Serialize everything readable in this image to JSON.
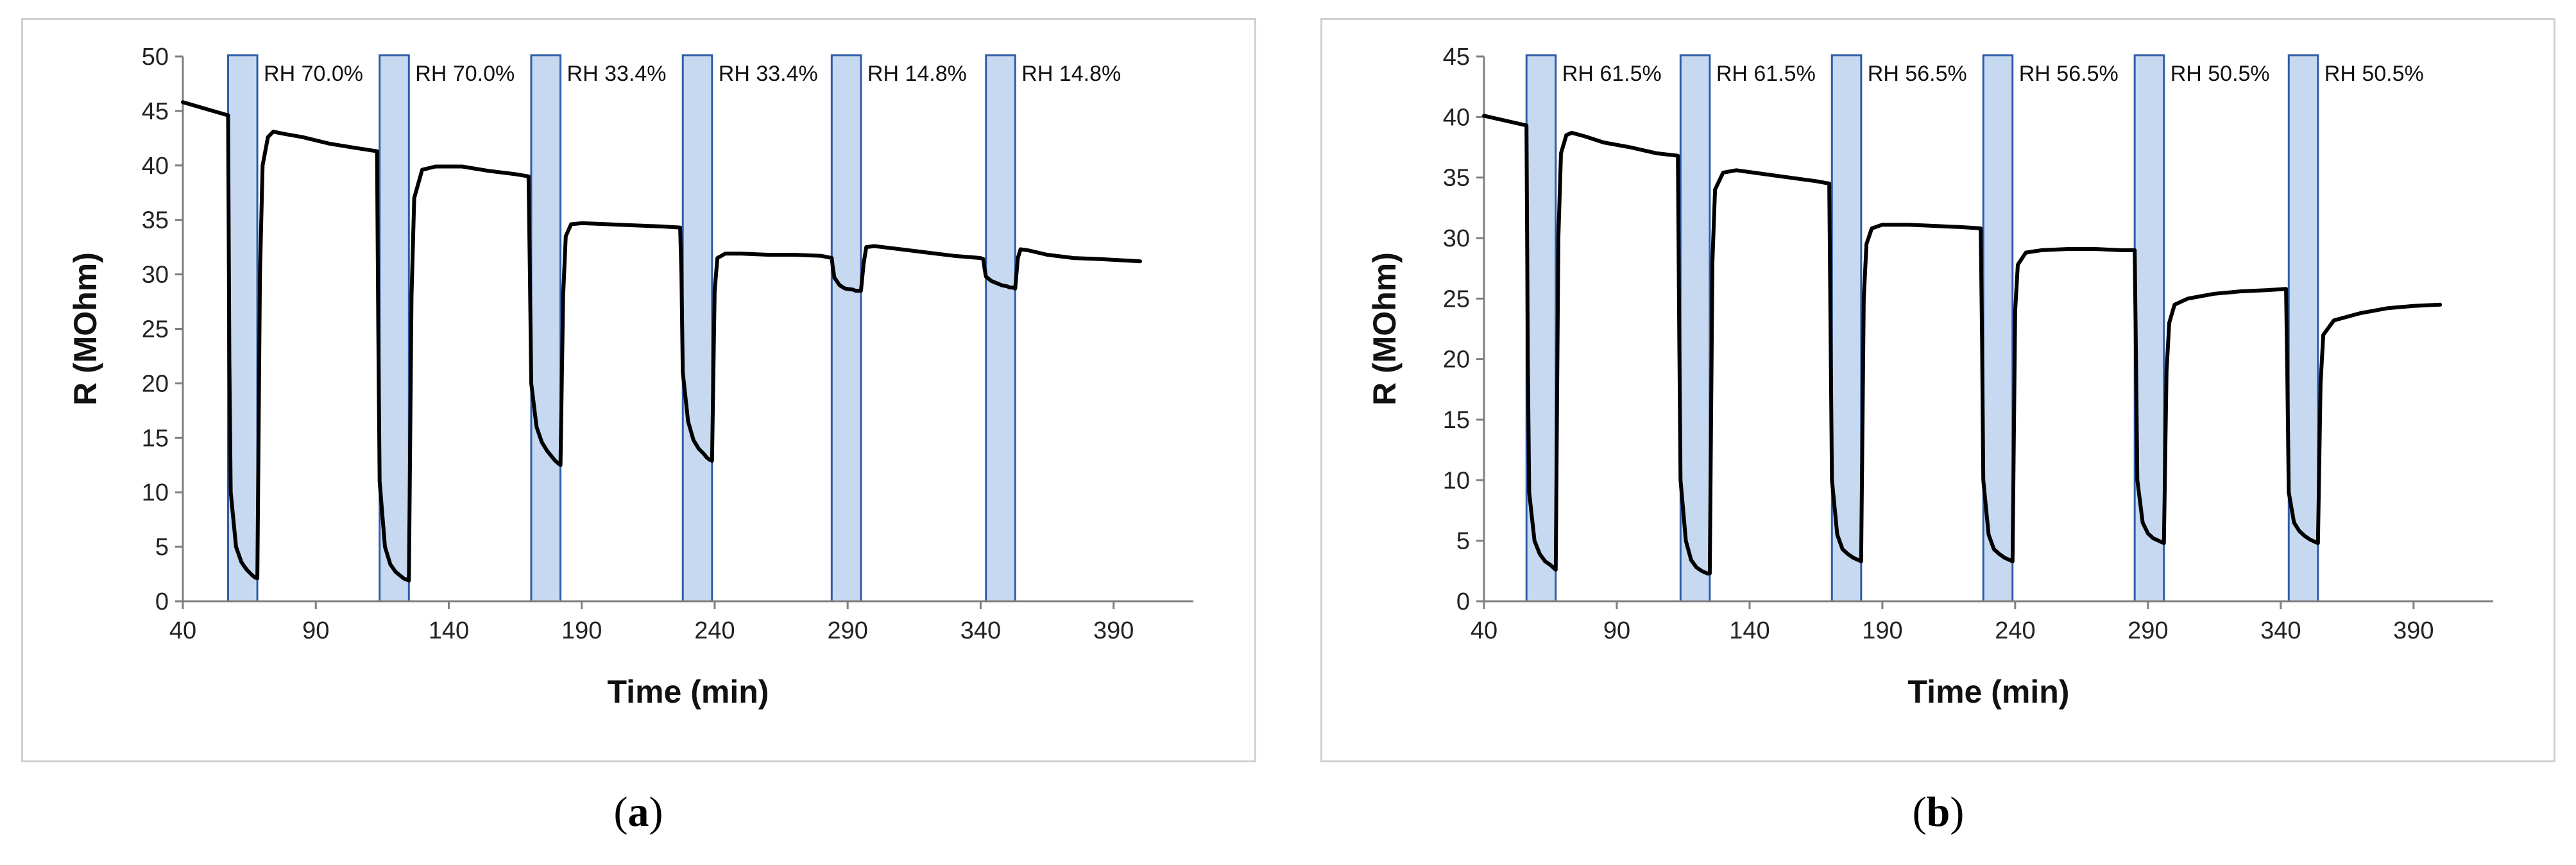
{
  "panels": [
    {
      "caption_open": "(",
      "caption_letter": "a",
      "caption_close": ")"
    },
    {
      "caption_open": "(",
      "caption_letter": "b",
      "caption_close": ")"
    }
  ],
  "colors": {
    "band_fill": "#c6d9f1",
    "band_stroke": "#2e5da8",
    "line": "#000000",
    "axis": "#7f7f7f"
  },
  "chart_data": [
    {
      "type": "line",
      "title": "",
      "xlabel": "Time (min)",
      "ylabel": "R (MOhm)",
      "xlim": [
        40,
        420
      ],
      "ylim": [
        0,
        50
      ],
      "xticks": [
        40,
        90,
        140,
        190,
        240,
        290,
        340,
        390
      ],
      "yticks": [
        0,
        5,
        10,
        15,
        20,
        25,
        30,
        35,
        40,
        45,
        50
      ],
      "bands": [
        {
          "x0": 57,
          "x1": 68,
          "label": "RH 70.0%"
        },
        {
          "x0": 114,
          "x1": 125,
          "label": "RH 70.0%"
        },
        {
          "x0": 171,
          "x1": 182,
          "label": "RH 33.4%"
        },
        {
          "x0": 228,
          "x1": 239,
          "label": "RH 33.4%"
        },
        {
          "x0": 284,
          "x1": 295,
          "label": "RH 14.8%"
        },
        {
          "x0": 342,
          "x1": 353,
          "label": "RH 14.8%"
        }
      ],
      "series": [
        {
          "name": "R",
          "x": [
            40,
            57,
            57.5,
            58,
            60,
            62,
            64,
            66,
            67,
            68,
            69,
            70,
            72,
            74,
            78,
            85,
            95,
            105,
            113,
            113.5,
            114,
            116,
            118,
            120,
            122,
            123,
            124,
            125,
            126,
            127,
            130,
            135,
            145,
            155,
            165,
            170,
            170.5,
            171,
            173,
            175,
            177,
            179,
            180,
            181,
            182,
            183,
            184,
            186,
            190,
            200,
            210,
            220,
            227,
            227.5,
            228,
            230,
            232,
            234,
            236,
            237,
            238,
            239,
            240,
            241,
            244,
            250,
            260,
            270,
            280,
            284,
            284.5,
            285,
            287,
            289,
            292,
            293,
            294,
            295,
            296,
            297,
            300,
            310,
            320,
            330,
            340,
            341,
            341.5,
            342,
            344,
            348,
            350,
            351,
            352,
            353,
            354,
            355,
            358,
            365,
            375,
            385,
            400
          ],
          "values": [
            45.8,
            44.6,
            22,
            10,
            5,
            3.6,
            2.9,
            2.4,
            2.2,
            2.1,
            30,
            40,
            42.6,
            43.1,
            42.9,
            42.6,
            42,
            41.6,
            41.3,
            25,
            11,
            5,
            3.4,
            2.7,
            2.3,
            2.1,
            2,
            1.9,
            28,
            37,
            39.6,
            39.9,
            39.9,
            39.5,
            39.2,
            39,
            30,
            20,
            16,
            14.6,
            13.8,
            13.2,
            12.9,
            12.7,
            12.5,
            28,
            33.5,
            34.6,
            34.7,
            34.6,
            34.5,
            34.4,
            34.3,
            30,
            21,
            16.5,
            14.8,
            14,
            13.5,
            13.2,
            13,
            12.9,
            28.5,
            31.5,
            31.9,
            31.9,
            31.8,
            31.8,
            31.7,
            31.5,
            30.5,
            29.7,
            29,
            28.7,
            28.6,
            28.5,
            28.5,
            28.5,
            31,
            32.5,
            32.6,
            32.3,
            32,
            31.7,
            31.5,
            31.4,
            30.5,
            29.8,
            29.4,
            29,
            28.9,
            28.8,
            28.8,
            28.7,
            31.5,
            32.3,
            32.2,
            31.8,
            31.5,
            31.4,
            31.2
          ]
        }
      ]
    },
    {
      "type": "line",
      "title": "",
      "xlabel": "Time (min)",
      "ylabel": "R (MOhm)",
      "xlim": [
        40,
        420
      ],
      "ylim": [
        0,
        45
      ],
      "xticks": [
        40,
        90,
        140,
        190,
        240,
        290,
        340,
        390
      ],
      "yticks": [
        0,
        5,
        10,
        15,
        20,
        25,
        30,
        35,
        40,
        45
      ],
      "bands": [
        {
          "x0": 56,
          "x1": 67,
          "label": "RH 61.5%"
        },
        {
          "x0": 114,
          "x1": 125,
          "label": "RH 61.5%"
        },
        {
          "x0": 171,
          "x1": 182,
          "label": "RH 56.5%"
        },
        {
          "x0": 228,
          "x1": 239,
          "label": "RH 56.5%"
        },
        {
          "x0": 285,
          "x1": 296,
          "label": "RH 50.5%"
        },
        {
          "x0": 343,
          "x1": 354,
          "label": "RH 50.5%"
        }
      ],
      "series": [
        {
          "name": "R",
          "x": [
            40,
            56,
            56.5,
            57,
            59,
            61,
            63,
            65,
            66,
            67,
            68,
            69,
            71,
            73,
            78,
            85,
            95,
            105,
            113,
            113.5,
            114,
            116,
            118,
            120,
            122,
            123,
            124,
            125,
            126,
            127,
            130,
            135,
            145,
            155,
            165,
            170,
            170.5,
            171,
            173,
            175,
            177,
            179,
            180,
            181,
            182,
            183,
            184,
            186,
            190,
            200,
            210,
            220,
            227,
            227.5,
            228,
            230,
            232,
            234,
            236,
            237,
            238,
            239,
            240,
            241,
            244,
            250,
            260,
            270,
            280,
            285,
            285.5,
            286,
            288,
            290,
            292,
            294,
            295,
            296,
            297,
            298,
            300,
            305,
            315,
            325,
            335,
            342,
            342.5,
            343,
            345,
            347,
            349,
            351,
            352,
            353,
            354,
            355,
            356,
            360,
            370,
            380,
            390,
            400
          ],
          "values": [
            40.1,
            39.3,
            20,
            9,
            5,
            3.9,
            3.3,
            3,
            2.8,
            2.6,
            30,
            37,
            38.5,
            38.7,
            38.4,
            37.9,
            37.5,
            37,
            36.8,
            22,
            10,
            5,
            3.4,
            2.8,
            2.5,
            2.4,
            2.3,
            2.3,
            28,
            34,
            35.4,
            35.6,
            35.3,
            35,
            34.7,
            34.5,
            22,
            10,
            5.5,
            4.3,
            3.9,
            3.6,
            3.5,
            3.4,
            3.3,
            25,
            29.5,
            30.8,
            31.1,
            31.1,
            31,
            30.9,
            30.8,
            22,
            10,
            5.5,
            4.3,
            3.9,
            3.6,
            3.5,
            3.4,
            3.3,
            24,
            27.8,
            28.8,
            29,
            29.1,
            29.1,
            29,
            29,
            20,
            10,
            6.5,
            5.6,
            5.2,
            5,
            4.9,
            4.8,
            19,
            23,
            24.5,
            25,
            25.4,
            25.6,
            25.7,
            25.8,
            18,
            9,
            6.5,
            5.8,
            5.4,
            5.1,
            5,
            4.9,
            4.8,
            18,
            22,
            23.2,
            23.8,
            24.2,
            24.4,
            24.5
          ]
        }
      ]
    }
  ]
}
